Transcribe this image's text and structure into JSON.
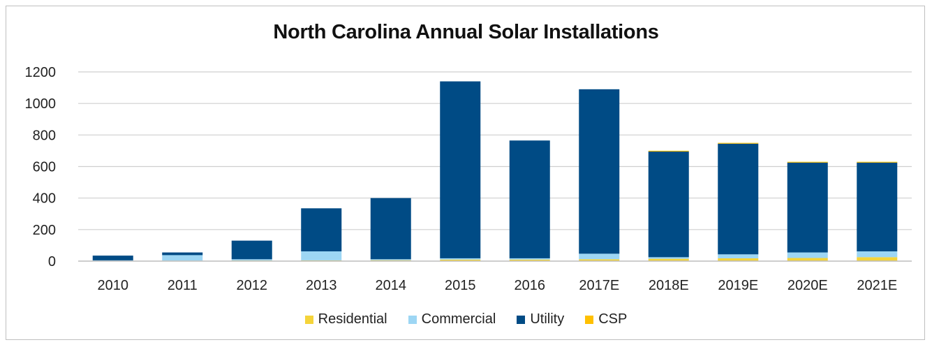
{
  "chart_data": {
    "type": "bar",
    "stacked": true,
    "title": "North Carolina Annual Solar Installations",
    "xlabel": "",
    "ylabel": "",
    "ylim": [
      0,
      1200
    ],
    "yticks": [
      0,
      200,
      400,
      600,
      800,
      1000,
      1200
    ],
    "grid": true,
    "legend_position": "bottom",
    "categories": [
      "2010",
      "2011",
      "2012",
      "2013",
      "2014",
      "2015",
      "2016",
      "2017E",
      "2018E",
      "2019E",
      "2020E",
      "2021E"
    ],
    "series": [
      {
        "name": "Residential",
        "color": "#f5d43a",
        "values": [
          2,
          3,
          4,
          5,
          6,
          10,
          10,
          12,
          15,
          18,
          20,
          25
        ]
      },
      {
        "name": "Commercial",
        "color": "#9dd6f4",
        "values": [
          3,
          35,
          8,
          57,
          6,
          8,
          8,
          35,
          10,
          25,
          35,
          37
        ]
      },
      {
        "name": "Utility",
        "color": "#004b85",
        "values": [
          30,
          17,
          118,
          273,
          388,
          1122,
          747,
          1043,
          670,
          702,
          570,
          563
        ]
      },
      {
        "name": "CSP",
        "color": "#ffc000",
        "values": [
          0,
          0,
          0,
          0,
          0,
          0,
          0,
          0,
          5,
          5,
          5,
          5
        ]
      }
    ]
  }
}
